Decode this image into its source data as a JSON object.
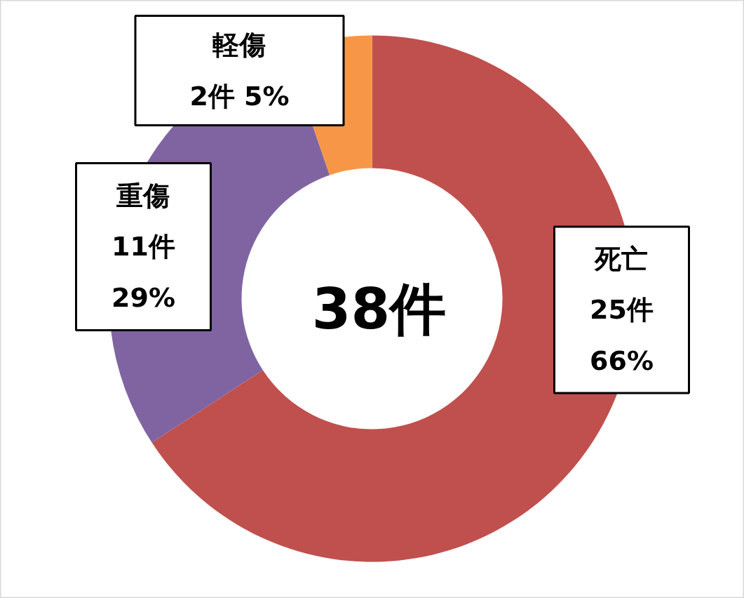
{
  "chart_data": {
    "type": "donut",
    "categories": [
      "死亡",
      "重傷",
      "軽傷"
    ],
    "values": [
      25,
      11,
      2
    ],
    "colors": [
      "#c0504d",
      "#8064a2",
      "#f79646"
    ],
    "value_labels": [
      "25件\n66%",
      "11件\n29%",
      "2件 5%"
    ],
    "annotations": [
      "38件"
    ]
  }
}
